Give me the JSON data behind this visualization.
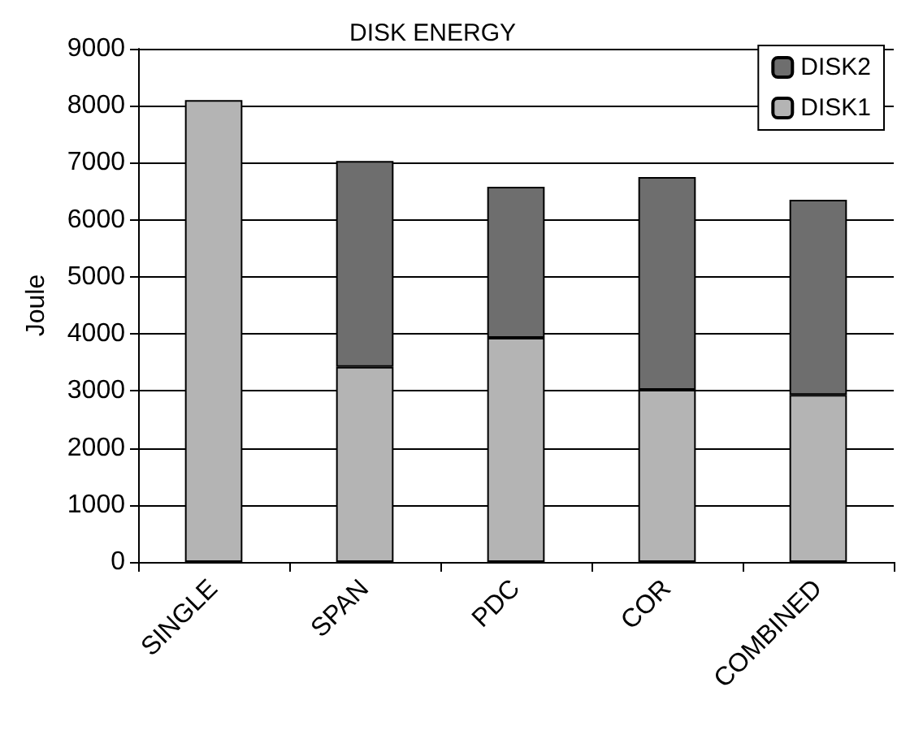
{
  "chart_data": {
    "type": "bar",
    "title": "DISK ENERGY",
    "ylabel": "Joule",
    "categories": [
      "SINGLE",
      "SPAN",
      "PDC",
      "COR",
      "COMBINED"
    ],
    "series": [
      {
        "name": "DISK1",
        "color": "#b4b4b4",
        "values": [
          8100,
          3420,
          3930,
          3020,
          2930
        ]
      },
      {
        "name": "DISK2",
        "color": "#6e6e6e",
        "values": [
          null,
          3610,
          2650,
          3730,
          3420
        ]
      }
    ],
    "stacked": true,
    "ylim": [
      0,
      9000
    ],
    "yticks": [
      0,
      1000,
      2000,
      3000,
      4000,
      5000,
      6000,
      7000,
      8000,
      9000
    ],
    "grid": "y",
    "legend": "top right"
  }
}
